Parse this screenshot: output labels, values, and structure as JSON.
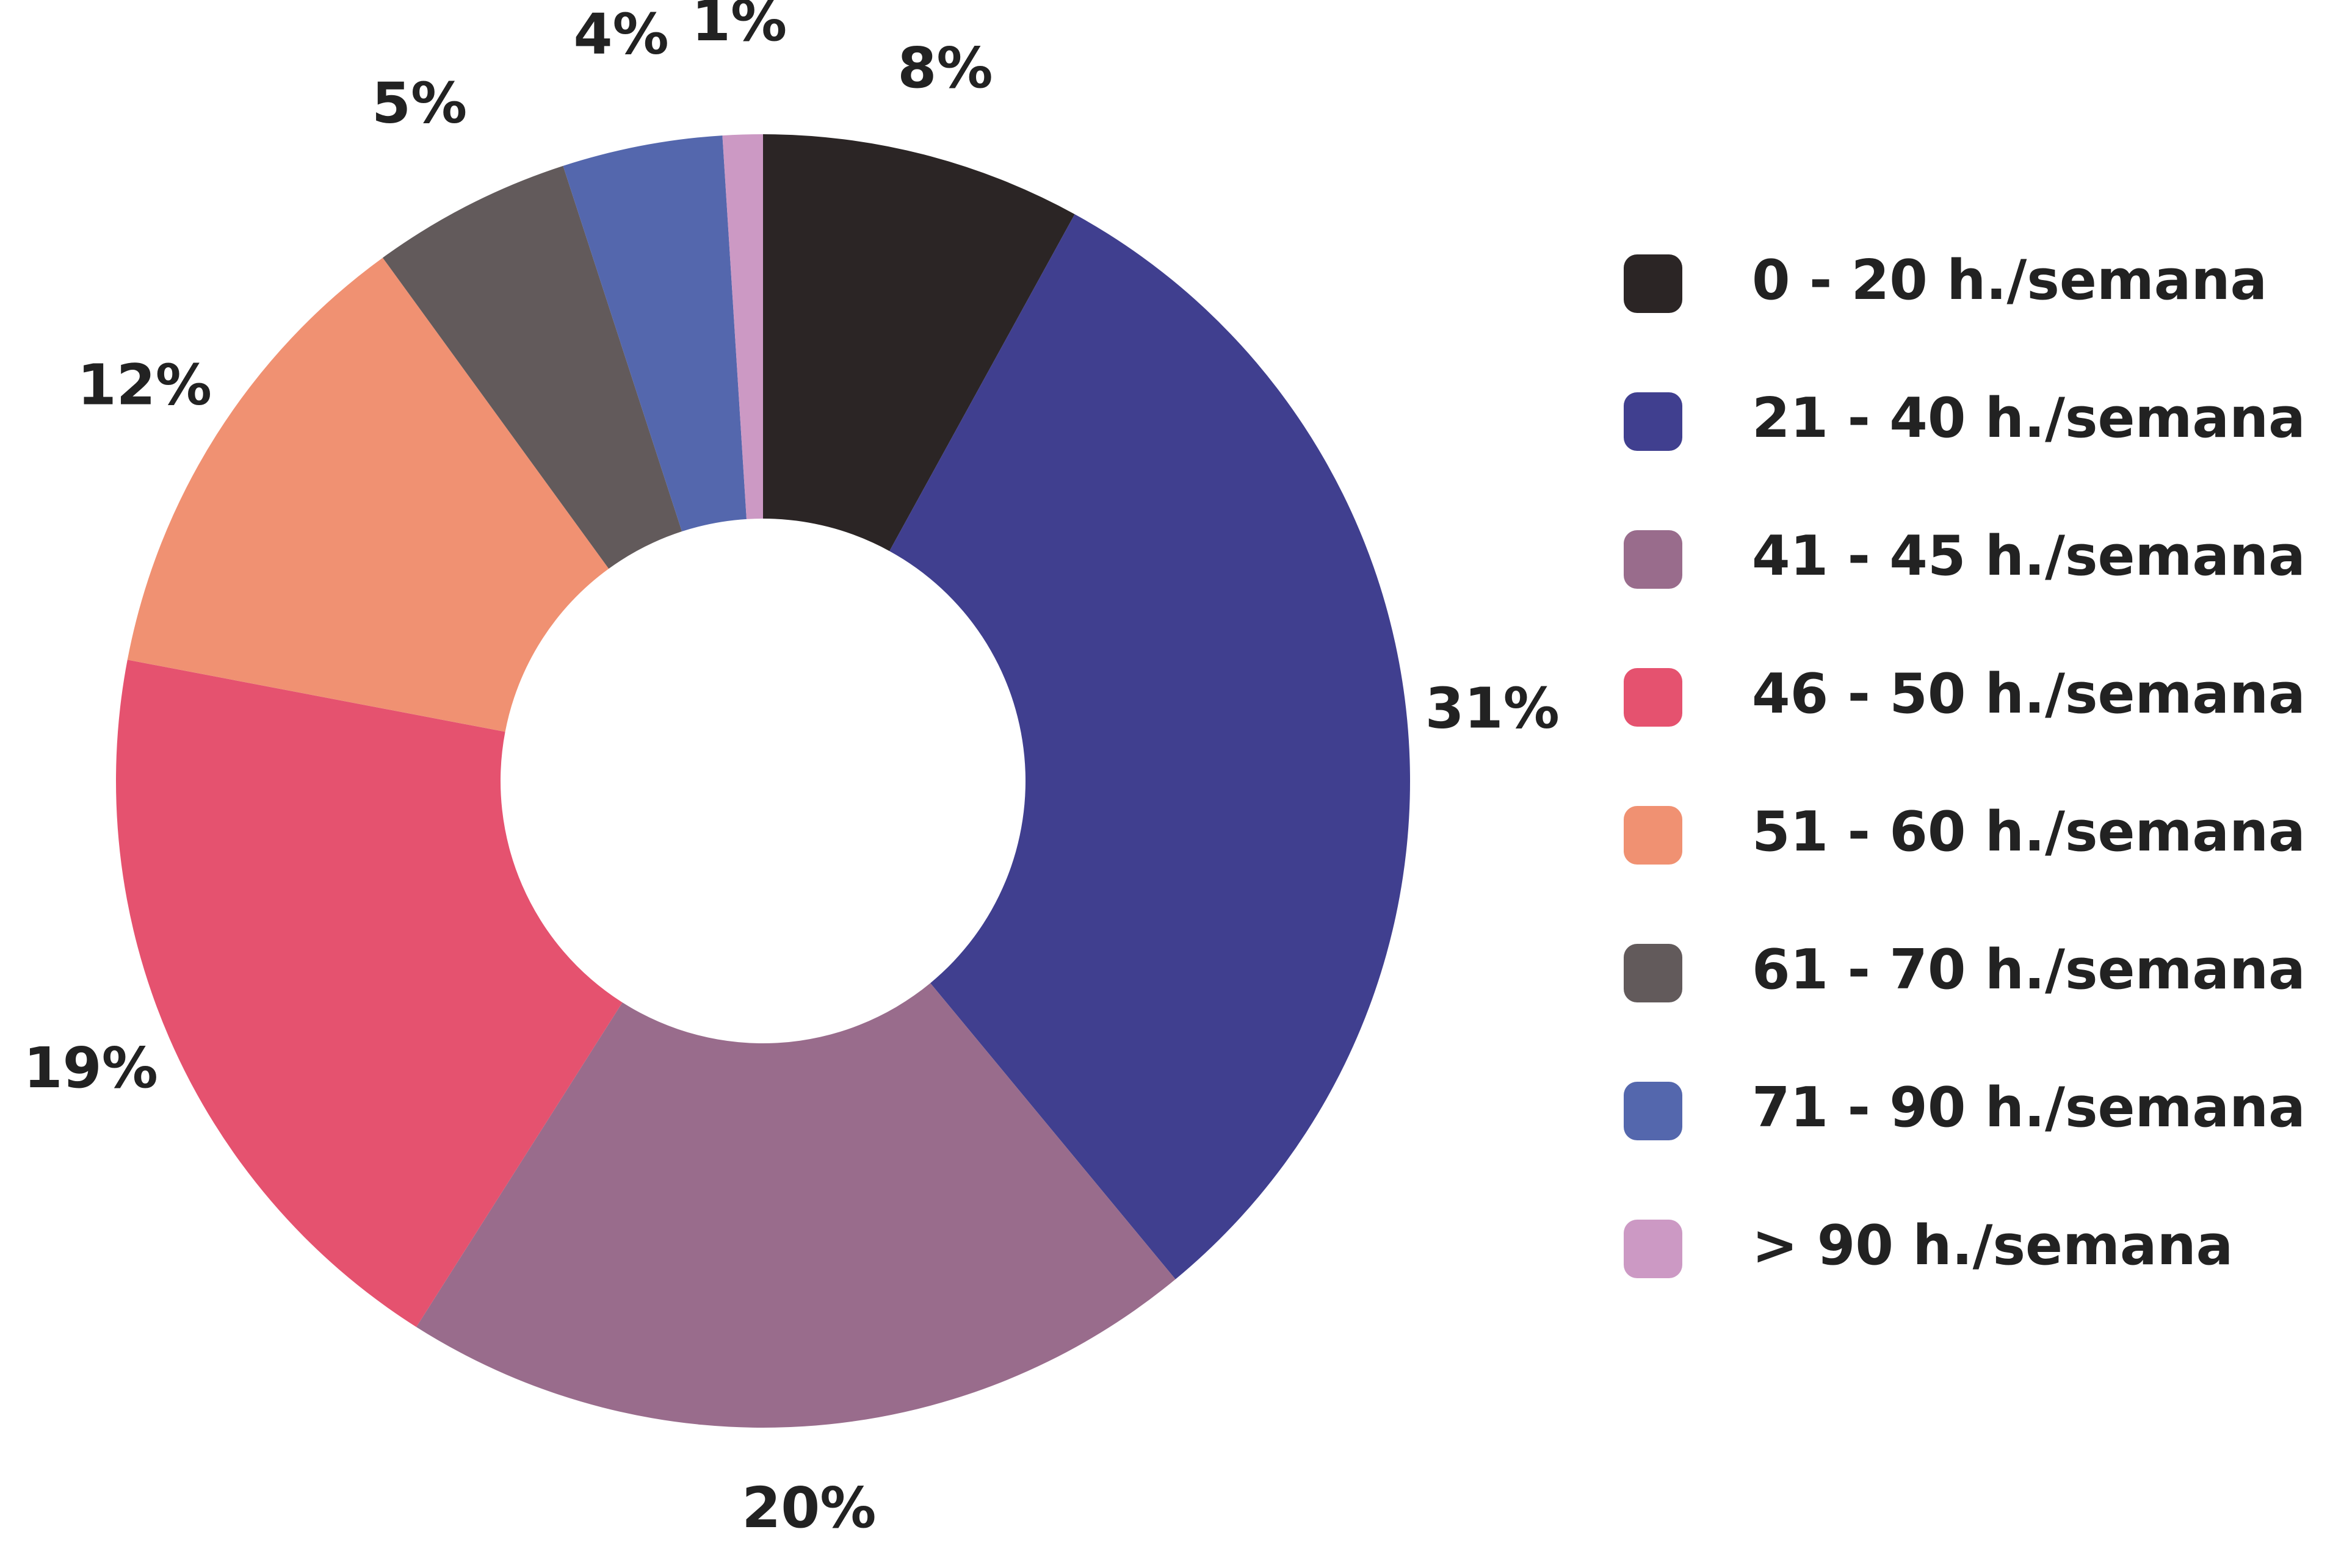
{
  "chart_data": {
    "type": "pie",
    "donut": true,
    "title": "",
    "legend_position": "right",
    "categories": [
      "0 - 20 h./semana",
      "21 - 40 h./semana",
      "41 - 45 h./semana",
      "46 - 50 h./semana",
      "51 - 60 h./semana",
      "61 - 70 h./semana",
      "71 - 90 h./semana",
      "> 90 h./semana"
    ],
    "values": [
      8,
      31,
      20,
      19,
      12,
      5,
      4,
      1
    ],
    "value_labels": [
      "8%",
      "31%",
      "20%",
      "19%",
      "12%",
      "5%",
      "4%",
      "1%"
    ],
    "colors": [
      "#2b2525",
      "#403f8f",
      "#996c8c",
      "#e5526f",
      "#f09172",
      "#625a5b",
      "#5467ad",
      "#cc99c4"
    ]
  }
}
